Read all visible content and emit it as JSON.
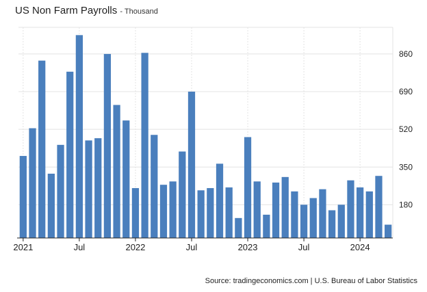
{
  "header": {
    "title": "US Non Farm Payrolls",
    "subtitle": "- Thousand"
  },
  "footer": {
    "source": "Source: tradingeconomics.com | U.S. Bureau of Labor Statistics"
  },
  "colors": {
    "bar": "#4a7fbd",
    "grid": "#e3e3e3",
    "axis": "#222222"
  },
  "chart_data": {
    "type": "bar",
    "title": "US Non Farm Payrolls",
    "subtitle": "- Thousand",
    "xlabel": "",
    "ylabel": "",
    "categories": [
      "Jan 2021",
      "Feb 2021",
      "Mar 2021",
      "Apr 2021",
      "May 2021",
      "Jun 2021",
      "Jul 2021",
      "Aug 2021",
      "Sep 2021",
      "Oct 2021",
      "Nov 2021",
      "Dec 2021",
      "Jan 2022",
      "Feb 2022",
      "Mar 2022",
      "Apr 2022",
      "May 2022",
      "Jun 2022",
      "Jul 2022",
      "Aug 2022",
      "Sep 2022",
      "Oct 2022",
      "Nov 2022",
      "Dec 2022",
      "Jan 2023",
      "Feb 2023",
      "Mar 2023",
      "Apr 2023",
      "May 2023",
      "Jun 2023",
      "Jul 2023",
      "Aug 2023",
      "Sep 2023",
      "Oct 2023",
      "Nov 2023",
      "Dec 2023",
      "Jan 2024",
      "Feb 2024",
      "Mar 2024",
      "Apr 2024"
    ],
    "values": [
      400,
      525,
      830,
      320,
      450,
      780,
      945,
      470,
      480,
      860,
      630,
      560,
      255,
      865,
      495,
      270,
      285,
      420,
      690,
      245,
      255,
      365,
      258,
      120,
      485,
      285,
      135,
      280,
      305,
      240,
      180,
      210,
      250,
      155,
      180,
      290,
      258,
      240,
      310,
      90
    ],
    "ylim": [
      30,
      980
    ],
    "y_ticks": [
      180,
      350,
      520,
      690,
      860
    ],
    "x_tick_labels": [
      {
        "label": "2021",
        "index": 0
      },
      {
        "label": "Jul",
        "index": 6
      },
      {
        "label": "2022",
        "index": 12
      },
      {
        "label": "Jul",
        "index": 18
      },
      {
        "label": "2023",
        "index": 24
      },
      {
        "label": "Jul",
        "index": 30
      },
      {
        "label": "2024",
        "index": 36
      }
    ],
    "grid": true,
    "y_axis_side": "right"
  }
}
